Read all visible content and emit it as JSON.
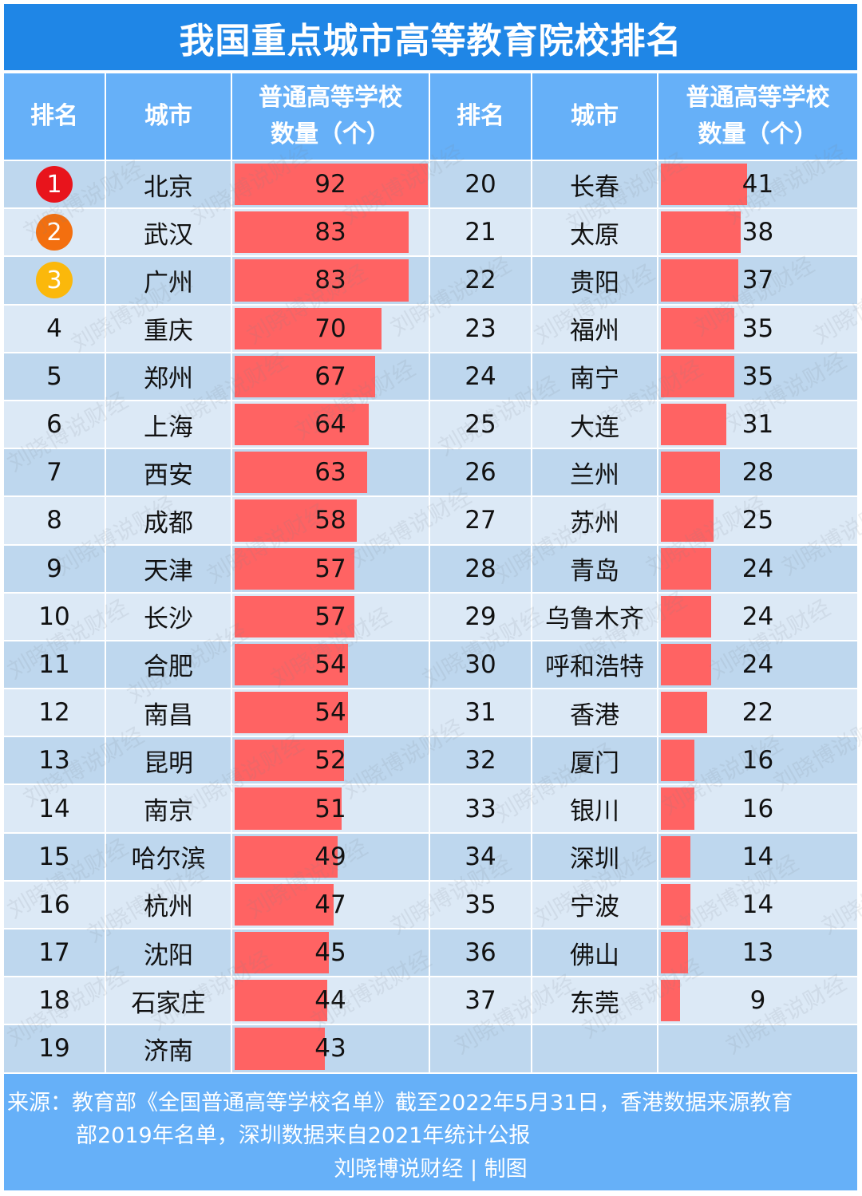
{
  "title": "我国重点城市高等教育院校排名",
  "headers": {
    "rank": "排名",
    "city": "城市",
    "count_line1": "普通高等学校",
    "count_line2": "数量（个）"
  },
  "colors": {
    "title_bg": "#1f86e6",
    "header_bg": "#66b0f8",
    "row_dark": "#bed7ee",
    "row_light": "#dce9f6",
    "bar": "#ff6363",
    "medal_1": "#e8141c",
    "medal_2": "#f36f0f",
    "medal_3": "#fbb80b"
  },
  "left_rows": [
    {
      "rank": "1",
      "city": "北京",
      "value": 92
    },
    {
      "rank": "2",
      "city": "武汉",
      "value": 83
    },
    {
      "rank": "3",
      "city": "广州",
      "value": 83
    },
    {
      "rank": "4",
      "city": "重庆",
      "value": 70
    },
    {
      "rank": "5",
      "city": "郑州",
      "value": 67
    },
    {
      "rank": "6",
      "city": "上海",
      "value": 64
    },
    {
      "rank": "7",
      "city": "西安",
      "value": 63
    },
    {
      "rank": "8",
      "city": "成都",
      "value": 58
    },
    {
      "rank": "9",
      "city": "天津",
      "value": 57
    },
    {
      "rank": "10",
      "city": "长沙",
      "value": 57
    },
    {
      "rank": "11",
      "city": "合肥",
      "value": 54
    },
    {
      "rank": "12",
      "city": "南昌",
      "value": 54
    },
    {
      "rank": "13",
      "city": "昆明",
      "value": 52
    },
    {
      "rank": "14",
      "city": "南京",
      "value": 51
    },
    {
      "rank": "15",
      "city": "哈尔滨",
      "value": 49
    },
    {
      "rank": "16",
      "city": "杭州",
      "value": 47
    },
    {
      "rank": "17",
      "city": "沈阳",
      "value": 45
    },
    {
      "rank": "18",
      "city": "石家庄",
      "value": 44
    },
    {
      "rank": "19",
      "city": "济南",
      "value": 43
    }
  ],
  "right_rows": [
    {
      "rank": "20",
      "city": "长春",
      "value": 41
    },
    {
      "rank": "21",
      "city": "太原",
      "value": 38
    },
    {
      "rank": "22",
      "city": "贵阳",
      "value": 37
    },
    {
      "rank": "23",
      "city": "福州",
      "value": 35
    },
    {
      "rank": "24",
      "city": "南宁",
      "value": 35
    },
    {
      "rank": "25",
      "city": "大连",
      "value": 31
    },
    {
      "rank": "26",
      "city": "兰州",
      "value": 28
    },
    {
      "rank": "27",
      "city": "苏州",
      "value": 25
    },
    {
      "rank": "28",
      "city": "青岛",
      "value": 24
    },
    {
      "rank": "29",
      "city": "乌鲁木齐",
      "value": 24
    },
    {
      "rank": "30",
      "city": "呼和浩特",
      "value": 24
    },
    {
      "rank": "31",
      "city": "香港",
      "value": 22
    },
    {
      "rank": "32",
      "city": "厦门",
      "value": 16
    },
    {
      "rank": "33",
      "city": "银川",
      "value": 16
    },
    {
      "rank": "34",
      "city": "深圳",
      "value": 14
    },
    {
      "rank": "35",
      "city": "宁波",
      "value": 14
    },
    {
      "rank": "36",
      "city": "佛山",
      "value": 13
    },
    {
      "rank": "37",
      "city": "东莞",
      "value": 9
    },
    {
      "rank": "",
      "city": "",
      "value": null
    }
  ],
  "footer": {
    "source_line1": "来源：教育部《全国普通高等学校名单》截至2022年5月31日，香港数据来源教育",
    "source_line2": "部2019年名单，深圳数据来自2021年统计公报",
    "credit": "刘晓博说财经 | 制图"
  },
  "watermark": "刘晓博说财经",
  "chart_data": {
    "type": "bar",
    "orientation": "horizontal",
    "title": "我国重点城市高等教育院校排名",
    "xlabel": "",
    "ylabel": "普通高等学校数量（个）",
    "categories": [
      "北京",
      "武汉",
      "广州",
      "重庆",
      "郑州",
      "上海",
      "西安",
      "成都",
      "天津",
      "长沙",
      "合肥",
      "南昌",
      "昆明",
      "南京",
      "哈尔滨",
      "杭州",
      "沈阳",
      "石家庄",
      "济南",
      "长春",
      "太原",
      "贵阳",
      "福州",
      "南宁",
      "大连",
      "兰州",
      "苏州",
      "青岛",
      "乌鲁木齐",
      "呼和浩特",
      "香港",
      "厦门",
      "银川",
      "深圳",
      "宁波",
      "佛山",
      "东莞"
    ],
    "values": [
      92,
      83,
      83,
      70,
      67,
      64,
      63,
      58,
      57,
      57,
      54,
      54,
      52,
      51,
      49,
      47,
      45,
      44,
      43,
      41,
      38,
      37,
      35,
      35,
      31,
      28,
      25,
      24,
      24,
      24,
      22,
      16,
      16,
      14,
      14,
      13,
      9
    ],
    "ranks": [
      1,
      2,
      3,
      4,
      5,
      6,
      7,
      8,
      9,
      10,
      11,
      12,
      13,
      14,
      15,
      16,
      17,
      18,
      19,
      20,
      21,
      22,
      23,
      24,
      25,
      26,
      27,
      28,
      29,
      30,
      31,
      32,
      33,
      34,
      35,
      36,
      37
    ],
    "xlim": [
      0,
      92
    ],
    "grid": false,
    "legend": "none",
    "layout": "two-column table with in-cell data bars"
  }
}
